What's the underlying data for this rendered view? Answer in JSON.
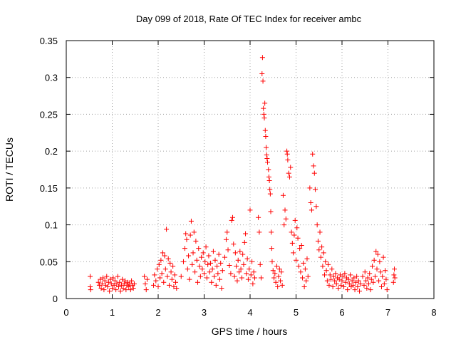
{
  "chart_data": {
    "type": "scatter",
    "title": "Day 099 of 2018, Rate Of TEC Index for receiver ambc",
    "xlabel": "GPS time / hours",
    "ylabel": "ROTI / TECUs",
    "xlim": [
      0,
      8
    ],
    "ylim": [
      0,
      0.35
    ],
    "x_ticks": [
      0,
      1,
      2,
      3,
      4,
      5,
      6,
      7,
      8
    ],
    "y_ticks": [
      0,
      0.05,
      0.1,
      0.15,
      0.2,
      0.25,
      0.3,
      0.35
    ],
    "x_tick_labels": [
      "0",
      "1",
      "2",
      "3",
      "4",
      "5",
      "6",
      "7",
      "8"
    ],
    "y_tick_labels": [
      "0",
      "0.05",
      "0.1",
      "0.15",
      "0.2",
      "0.25",
      "0.3",
      "0.35"
    ],
    "grid": true,
    "marker": "+",
    "marker_color": "#ff0000",
    "series": [
      {
        "name": "ROTI",
        "points": [
          [
            0.52,
            0.03
          ],
          [
            0.52,
            0.016
          ],
          [
            0.53,
            0.012
          ],
          [
            0.7,
            0.022
          ],
          [
            0.72,
            0.018
          ],
          [
            0.74,
            0.026
          ],
          [
            0.76,
            0.014
          ],
          [
            0.78,
            0.02
          ],
          [
            0.8,
            0.028
          ],
          [
            0.82,
            0.012
          ],
          [
            0.84,
            0.024
          ],
          [
            0.86,
            0.018
          ],
          [
            0.88,
            0.03
          ],
          [
            0.9,
            0.016
          ],
          [
            0.92,
            0.022
          ],
          [
            0.94,
            0.01
          ],
          [
            0.96,
            0.026
          ],
          [
            0.98,
            0.02
          ],
          [
            1.0,
            0.014
          ],
          [
            1.02,
            0.028
          ],
          [
            1.04,
            0.018
          ],
          [
            1.06,
            0.024
          ],
          [
            1.08,
            0.012
          ],
          [
            1.1,
            0.02
          ],
          [
            1.12,
            0.03
          ],
          [
            1.14,
            0.016
          ],
          [
            1.16,
            0.022
          ],
          [
            1.18,
            0.01
          ],
          [
            1.2,
            0.018
          ],
          [
            1.22,
            0.026
          ],
          [
            1.24,
            0.014
          ],
          [
            1.26,
            0.02
          ],
          [
            1.28,
            0.024
          ],
          [
            1.3,
            0.012
          ],
          [
            1.32,
            0.018
          ],
          [
            1.34,
            0.022
          ],
          [
            1.36,
            0.016
          ],
          [
            1.38,
            0.02
          ],
          [
            1.4,
            0.012
          ],
          [
            1.42,
            0.024
          ],
          [
            1.44,
            0.018
          ],
          [
            1.46,
            0.014
          ],
          [
            1.48,
            0.02
          ],
          [
            1.7,
            0.03
          ],
          [
            1.72,
            0.02
          ],
          [
            1.74,
            0.012
          ],
          [
            1.76,
            0.026
          ],
          [
            1.9,
            0.018
          ],
          [
            1.92,
            0.032
          ],
          [
            1.95,
            0.024
          ],
          [
            1.98,
            0.04
          ],
          [
            2.0,
            0.016
          ],
          [
            2.02,
            0.046
          ],
          [
            2.04,
            0.028
          ],
          [
            2.06,
            0.052
          ],
          [
            2.08,
            0.034
          ],
          [
            2.1,
            0.062
          ],
          [
            2.12,
            0.022
          ],
          [
            2.14,
            0.058
          ],
          [
            2.16,
            0.04
          ],
          [
            2.18,
            0.094
          ],
          [
            2.2,
            0.03
          ],
          [
            2.22,
            0.054
          ],
          [
            2.24,
            0.018
          ],
          [
            2.26,
            0.048
          ],
          [
            2.28,
            0.036
          ],
          [
            2.3,
            0.026
          ],
          [
            2.32,
            0.044
          ],
          [
            2.34,
            0.016
          ],
          [
            2.36,
            0.032
          ],
          [
            2.38,
            0.022
          ],
          [
            2.4,
            0.014
          ],
          [
            2.5,
            0.03
          ],
          [
            2.55,
            0.05
          ],
          [
            2.58,
            0.068
          ],
          [
            2.6,
            0.088
          ],
          [
            2.62,
            0.08
          ],
          [
            2.64,
            0.04
          ],
          [
            2.66,
            0.058
          ],
          [
            2.68,
            0.026
          ],
          [
            2.7,
            0.086
          ],
          [
            2.72,
            0.105
          ],
          [
            2.74,
            0.046
          ],
          [
            2.76,
            0.062
          ],
          [
            2.78,
            0.09
          ],
          [
            2.8,
            0.036
          ],
          [
            2.82,
            0.078
          ],
          [
            2.84,
            0.052
          ],
          [
            2.86,
            0.022
          ],
          [
            2.88,
            0.068
          ],
          [
            2.9,
            0.044
          ],
          [
            2.92,
            0.03
          ],
          [
            2.94,
            0.056
          ],
          [
            2.96,
            0.04
          ],
          [
            2.98,
            0.062
          ],
          [
            3.0,
            0.034
          ],
          [
            3.02,
            0.05
          ],
          [
            3.04,
            0.07
          ],
          [
            3.06,
            0.028
          ],
          [
            3.08,
            0.046
          ],
          [
            3.1,
            0.058
          ],
          [
            3.12,
            0.036
          ],
          [
            3.14,
            0.048
          ],
          [
            3.16,
            0.022
          ],
          [
            3.18,
            0.04
          ],
          [
            3.2,
            0.064
          ],
          [
            3.22,
            0.03
          ],
          [
            3.24,
            0.052
          ],
          [
            3.26,
            0.018
          ],
          [
            3.28,
            0.044
          ],
          [
            3.3,
            0.034
          ],
          [
            3.32,
            0.06
          ],
          [
            3.34,
            0.026
          ],
          [
            3.36,
            0.048
          ],
          [
            3.38,
            0.014
          ],
          [
            3.4,
            0.038
          ],
          [
            3.45,
            0.056
          ],
          [
            3.48,
            0.08
          ],
          [
            3.5,
            0.09
          ],
          [
            3.52,
            0.066
          ],
          [
            3.55,
            0.045
          ],
          [
            3.58,
            0.034
          ],
          [
            3.6,
            0.106
          ],
          [
            3.62,
            0.11
          ],
          [
            3.64,
            0.074
          ],
          [
            3.66,
            0.03
          ],
          [
            3.68,
            0.062
          ],
          [
            3.7,
            0.044
          ],
          [
            3.72,
            0.024
          ],
          [
            3.74,
            0.052
          ],
          [
            3.76,
            0.036
          ],
          [
            3.78,
            0.064
          ],
          [
            3.8,
            0.04
          ],
          [
            3.82,
            0.028
          ],
          [
            3.84,
            0.06
          ],
          [
            3.86,
            0.046
          ],
          [
            3.88,
            0.076
          ],
          [
            3.9,
            0.088
          ],
          [
            3.92,
            0.034
          ],
          [
            3.94,
            0.054
          ],
          [
            3.96,
            0.026
          ],
          [
            3.98,
            0.04
          ],
          [
            4.0,
            0.12
          ],
          [
            4.02,
            0.032
          ],
          [
            4.04,
            0.05
          ],
          [
            4.06,
            0.02
          ],
          [
            4.08,
            0.036
          ],
          [
            4.1,
            0.028
          ],
          [
            4.18,
            0.11
          ],
          [
            4.2,
            0.09
          ],
          [
            4.22,
            0.046
          ],
          [
            4.24,
            0.028
          ],
          [
            4.26,
            0.305
          ],
          [
            4.27,
            0.327
          ],
          [
            4.28,
            0.295
          ],
          [
            4.29,
            0.258
          ],
          [
            4.3,
            0.25
          ],
          [
            4.31,
            0.245
          ],
          [
            4.32,
            0.265
          ],
          [
            4.33,
            0.228
          ],
          [
            4.34,
            0.22
          ],
          [
            4.35,
            0.205
          ],
          [
            4.36,
            0.195
          ],
          [
            4.37,
            0.19
          ],
          [
            4.38,
            0.185
          ],
          [
            4.4,
            0.175
          ],
          [
            4.41,
            0.165
          ],
          [
            4.42,
            0.16
          ],
          [
            4.43,
            0.148
          ],
          [
            4.44,
            0.142
          ],
          [
            4.45,
            0.118
          ],
          [
            4.46,
            0.09
          ],
          [
            4.47,
            0.068
          ],
          [
            4.48,
            0.05
          ],
          [
            4.5,
            0.038
          ],
          [
            4.52,
            0.028
          ],
          [
            4.54,
            0.034
          ],
          [
            4.56,
            0.022
          ],
          [
            4.58,
            0.044
          ],
          [
            4.6,
            0.016
          ],
          [
            4.62,
            0.03
          ],
          [
            4.64,
            0.04
          ],
          [
            4.66,
            0.024
          ],
          [
            4.68,
            0.036
          ],
          [
            4.7,
            0.018
          ],
          [
            4.72,
            0.14
          ],
          [
            4.74,
            0.1
          ],
          [
            4.76,
            0.12
          ],
          [
            4.78,
            0.108
          ],
          [
            4.8,
            0.2
          ],
          [
            4.81,
            0.196
          ],
          [
            4.82,
            0.188
          ],
          [
            4.84,
            0.17
          ],
          [
            4.86,
            0.165
          ],
          [
            4.88,
            0.178
          ],
          [
            4.9,
            0.09
          ],
          [
            4.92,
            0.075
          ],
          [
            4.94,
            0.062
          ],
          [
            4.96,
            0.086
          ],
          [
            4.98,
            0.106
          ],
          [
            5.0,
            0.052
          ],
          [
            5.02,
            0.096
          ],
          [
            5.04,
            0.082
          ],
          [
            5.06,
            0.044
          ],
          [
            5.08,
            0.068
          ],
          [
            5.1,
            0.036
          ],
          [
            5.12,
            0.072
          ],
          [
            5.14,
            0.028
          ],
          [
            5.16,
            0.048
          ],
          [
            5.18,
            0.016
          ],
          [
            5.2,
            0.04
          ],
          [
            5.22,
            0.024
          ],
          [
            5.24,
            0.054
          ],
          [
            5.26,
            0.03
          ],
          [
            5.3,
            0.15
          ],
          [
            5.32,
            0.13
          ],
          [
            5.34,
            0.12
          ],
          [
            5.36,
            0.196
          ],
          [
            5.38,
            0.18
          ],
          [
            5.4,
            0.17
          ],
          [
            5.42,
            0.148
          ],
          [
            5.44,
            0.125
          ],
          [
            5.46,
            0.1
          ],
          [
            5.48,
            0.078
          ],
          [
            5.5,
            0.066
          ],
          [
            5.52,
            0.09
          ],
          [
            5.54,
            0.056
          ],
          [
            5.56,
            0.07
          ],
          [
            5.58,
            0.044
          ],
          [
            5.6,
            0.062
          ],
          [
            5.62,
            0.032
          ],
          [
            5.64,
            0.05
          ],
          [
            5.66,
            0.038
          ],
          [
            5.68,
            0.024
          ],
          [
            5.7,
            0.046
          ],
          [
            5.72,
            0.018
          ],
          [
            5.74,
            0.032
          ],
          [
            5.76,
            0.026
          ],
          [
            5.78,
            0.04
          ],
          [
            5.8,
            0.016
          ],
          [
            5.82,
            0.03
          ],
          [
            5.84,
            0.024
          ],
          [
            5.86,
            0.034
          ],
          [
            5.88,
            0.02
          ],
          [
            5.9,
            0.028
          ],
          [
            5.92,
            0.014
          ],
          [
            5.94,
            0.026
          ],
          [
            5.96,
            0.032
          ],
          [
            5.98,
            0.018
          ],
          [
            6.0,
            0.024
          ],
          [
            6.02,
            0.03
          ],
          [
            6.04,
            0.016
          ],
          [
            6.06,
            0.034
          ],
          [
            6.08,
            0.022
          ],
          [
            6.1,
            0.028
          ],
          [
            6.12,
            0.012
          ],
          [
            6.14,
            0.026
          ],
          [
            6.16,
            0.02
          ],
          [
            6.18,
            0.032
          ],
          [
            6.2,
            0.016
          ],
          [
            6.22,
            0.024
          ],
          [
            6.24,
            0.018
          ],
          [
            6.26,
            0.028
          ],
          [
            6.28,
            0.012
          ],
          [
            6.3,
            0.022
          ],
          [
            6.32,
            0.03
          ],
          [
            6.34,
            0.016
          ],
          [
            6.36,
            0.024
          ],
          [
            6.38,
            0.01
          ],
          [
            6.4,
            0.02
          ],
          [
            6.45,
            0.03
          ],
          [
            6.48,
            0.018
          ],
          [
            6.5,
            0.036
          ],
          [
            6.52,
            0.024
          ],
          [
            6.54,
            0.014
          ],
          [
            6.56,
            0.028
          ],
          [
            6.58,
            0.02
          ],
          [
            6.6,
            0.034
          ],
          [
            6.62,
            0.012
          ],
          [
            6.64,
            0.026
          ],
          [
            6.66,
            0.044
          ],
          [
            6.68,
            0.022
          ],
          [
            6.7,
            0.052
          ],
          [
            6.72,
            0.03
          ],
          [
            6.74,
            0.064
          ],
          [
            6.76,
            0.04
          ],
          [
            6.78,
            0.06
          ],
          [
            6.8,
            0.024
          ],
          [
            6.82,
            0.05
          ],
          [
            6.84,
            0.036
          ],
          [
            6.86,
            0.016
          ],
          [
            6.88,
            0.03
          ],
          [
            6.9,
            0.056
          ],
          [
            6.92,
            0.02
          ],
          [
            6.94,
            0.038
          ],
          [
            6.96,
            0.026
          ],
          [
            6.98,
            0.012
          ],
          [
            7.12,
            0.022
          ],
          [
            7.13,
            0.032
          ],
          [
            7.14,
            0.04
          ],
          [
            7.15,
            0.028
          ]
        ]
      }
    ]
  }
}
